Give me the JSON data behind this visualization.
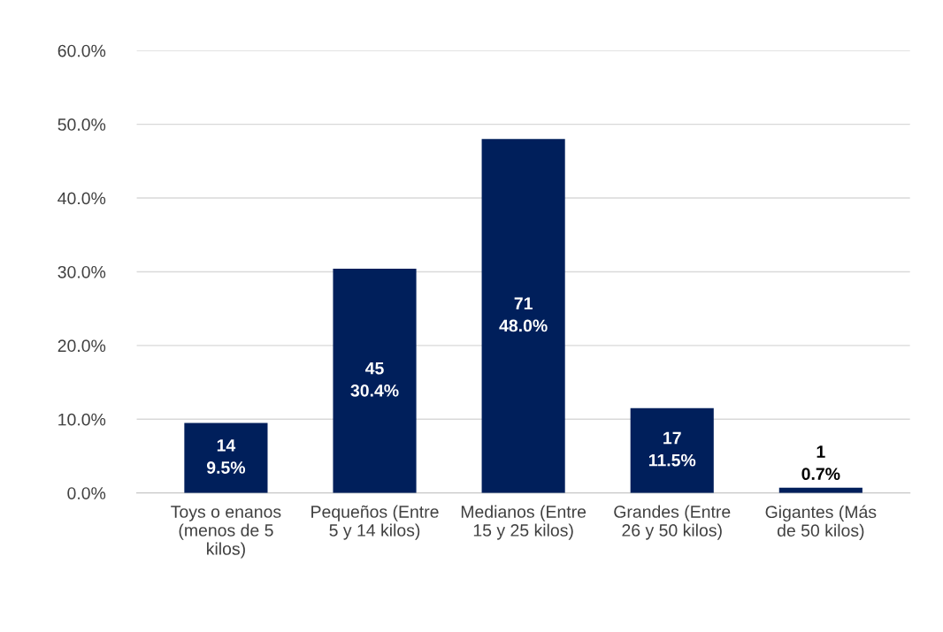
{
  "chart_data": {
    "type": "bar",
    "categories": [
      "Toys o enanos\n(menos de 5\nkilos)",
      "Pequeños (Entre\n5 y 14 kilos)",
      "Medianos (Entre\n15 y 25 kilos)",
      "Grandes (Entre\n26 y 50 kilos)",
      "Gigantes (Más\nde 50 kilos)"
    ],
    "values": [
      9.5,
      30.4,
      48.0,
      11.5,
      0.7
    ],
    "value_labels": [
      "14\n9.5%",
      "45\n30.4%",
      "71\n48.0%",
      "17\n11.5%",
      "1\n0.7%"
    ],
    "color": "#001f5b",
    "ylim": [
      0,
      60
    ],
    "yticks": [
      {
        "value": 0,
        "label": "0.0%"
      },
      {
        "value": 10,
        "label": "10.0%"
      },
      {
        "value": 20,
        "label": "20.0%"
      },
      {
        "value": 30,
        "label": "30.0%"
      },
      {
        "value": 40,
        "label": "40.0%"
      },
      {
        "value": 50,
        "label": "50.0%"
      },
      {
        "value": 60,
        "label": "60.0%"
      }
    ],
    "grid": "y",
    "legend": false
  }
}
